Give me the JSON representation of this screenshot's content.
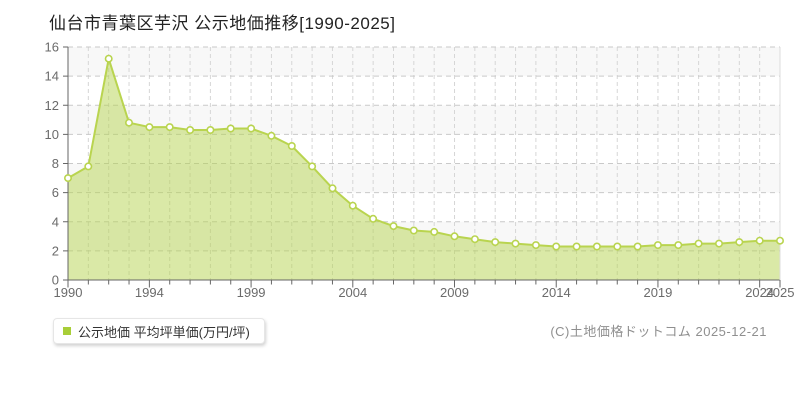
{
  "title": "仙台市青葉区芋沢 公示地価推移[1990-2025]",
  "legend": {
    "label": "公示地価 平均坪単価(万円/坪)",
    "marker_color": "#a8ce38"
  },
  "copyright": "(C)土地価格ドットコム 2025-12-21",
  "colors": {
    "area_fill": "rgba(181,211,79,0.5)",
    "line": "#b9d44f",
    "marker_fill": "#ffffff",
    "marker_stroke": "#b9d44f",
    "grid_h": "#c9c9c9",
    "grid_v": "#d6d6d6",
    "axis": "#666666",
    "right_border": "#dddddd",
    "band": "#f8f8f8",
    "tick_label": "#6b6b6b"
  },
  "chart_data": {
    "type": "area",
    "title": "仙台市青葉区芋沢 公示地価推移[1990-2025]",
    "series_name": "公示地価 平均坪単価(万円/坪)",
    "xlabel": "",
    "ylabel": "万円/坪",
    "x": [
      1990,
      1991,
      1992,
      1993,
      1994,
      1995,
      1996,
      1997,
      1998,
      1999,
      2000,
      2001,
      2002,
      2003,
      2004,
      2005,
      2006,
      2007,
      2008,
      2009,
      2010,
      2011,
      2012,
      2013,
      2014,
      2015,
      2016,
      2017,
      2018,
      2019,
      2020,
      2021,
      2022,
      2023,
      2024,
      2025
    ],
    "values": [
      7.0,
      7.8,
      15.2,
      10.8,
      10.5,
      10.5,
      10.3,
      10.3,
      10.4,
      10.4,
      9.9,
      9.2,
      7.8,
      6.3,
      5.1,
      4.2,
      3.7,
      3.4,
      3.3,
      3.0,
      2.8,
      2.6,
      2.5,
      2.4,
      2.3,
      2.3,
      2.3,
      2.3,
      2.3,
      2.4,
      2.4,
      2.5,
      2.5,
      2.6,
      2.7,
      2.7
    ],
    "ylim": [
      0,
      16
    ],
    "yticks": [
      0,
      2,
      4,
      6,
      8,
      10,
      12,
      14,
      16
    ],
    "xticks_labeled": [
      1990,
      1994,
      1999,
      2004,
      2009,
      2014,
      2019,
      2024,
      2025
    ],
    "grid": true,
    "legend_position": "bottom-left"
  }
}
